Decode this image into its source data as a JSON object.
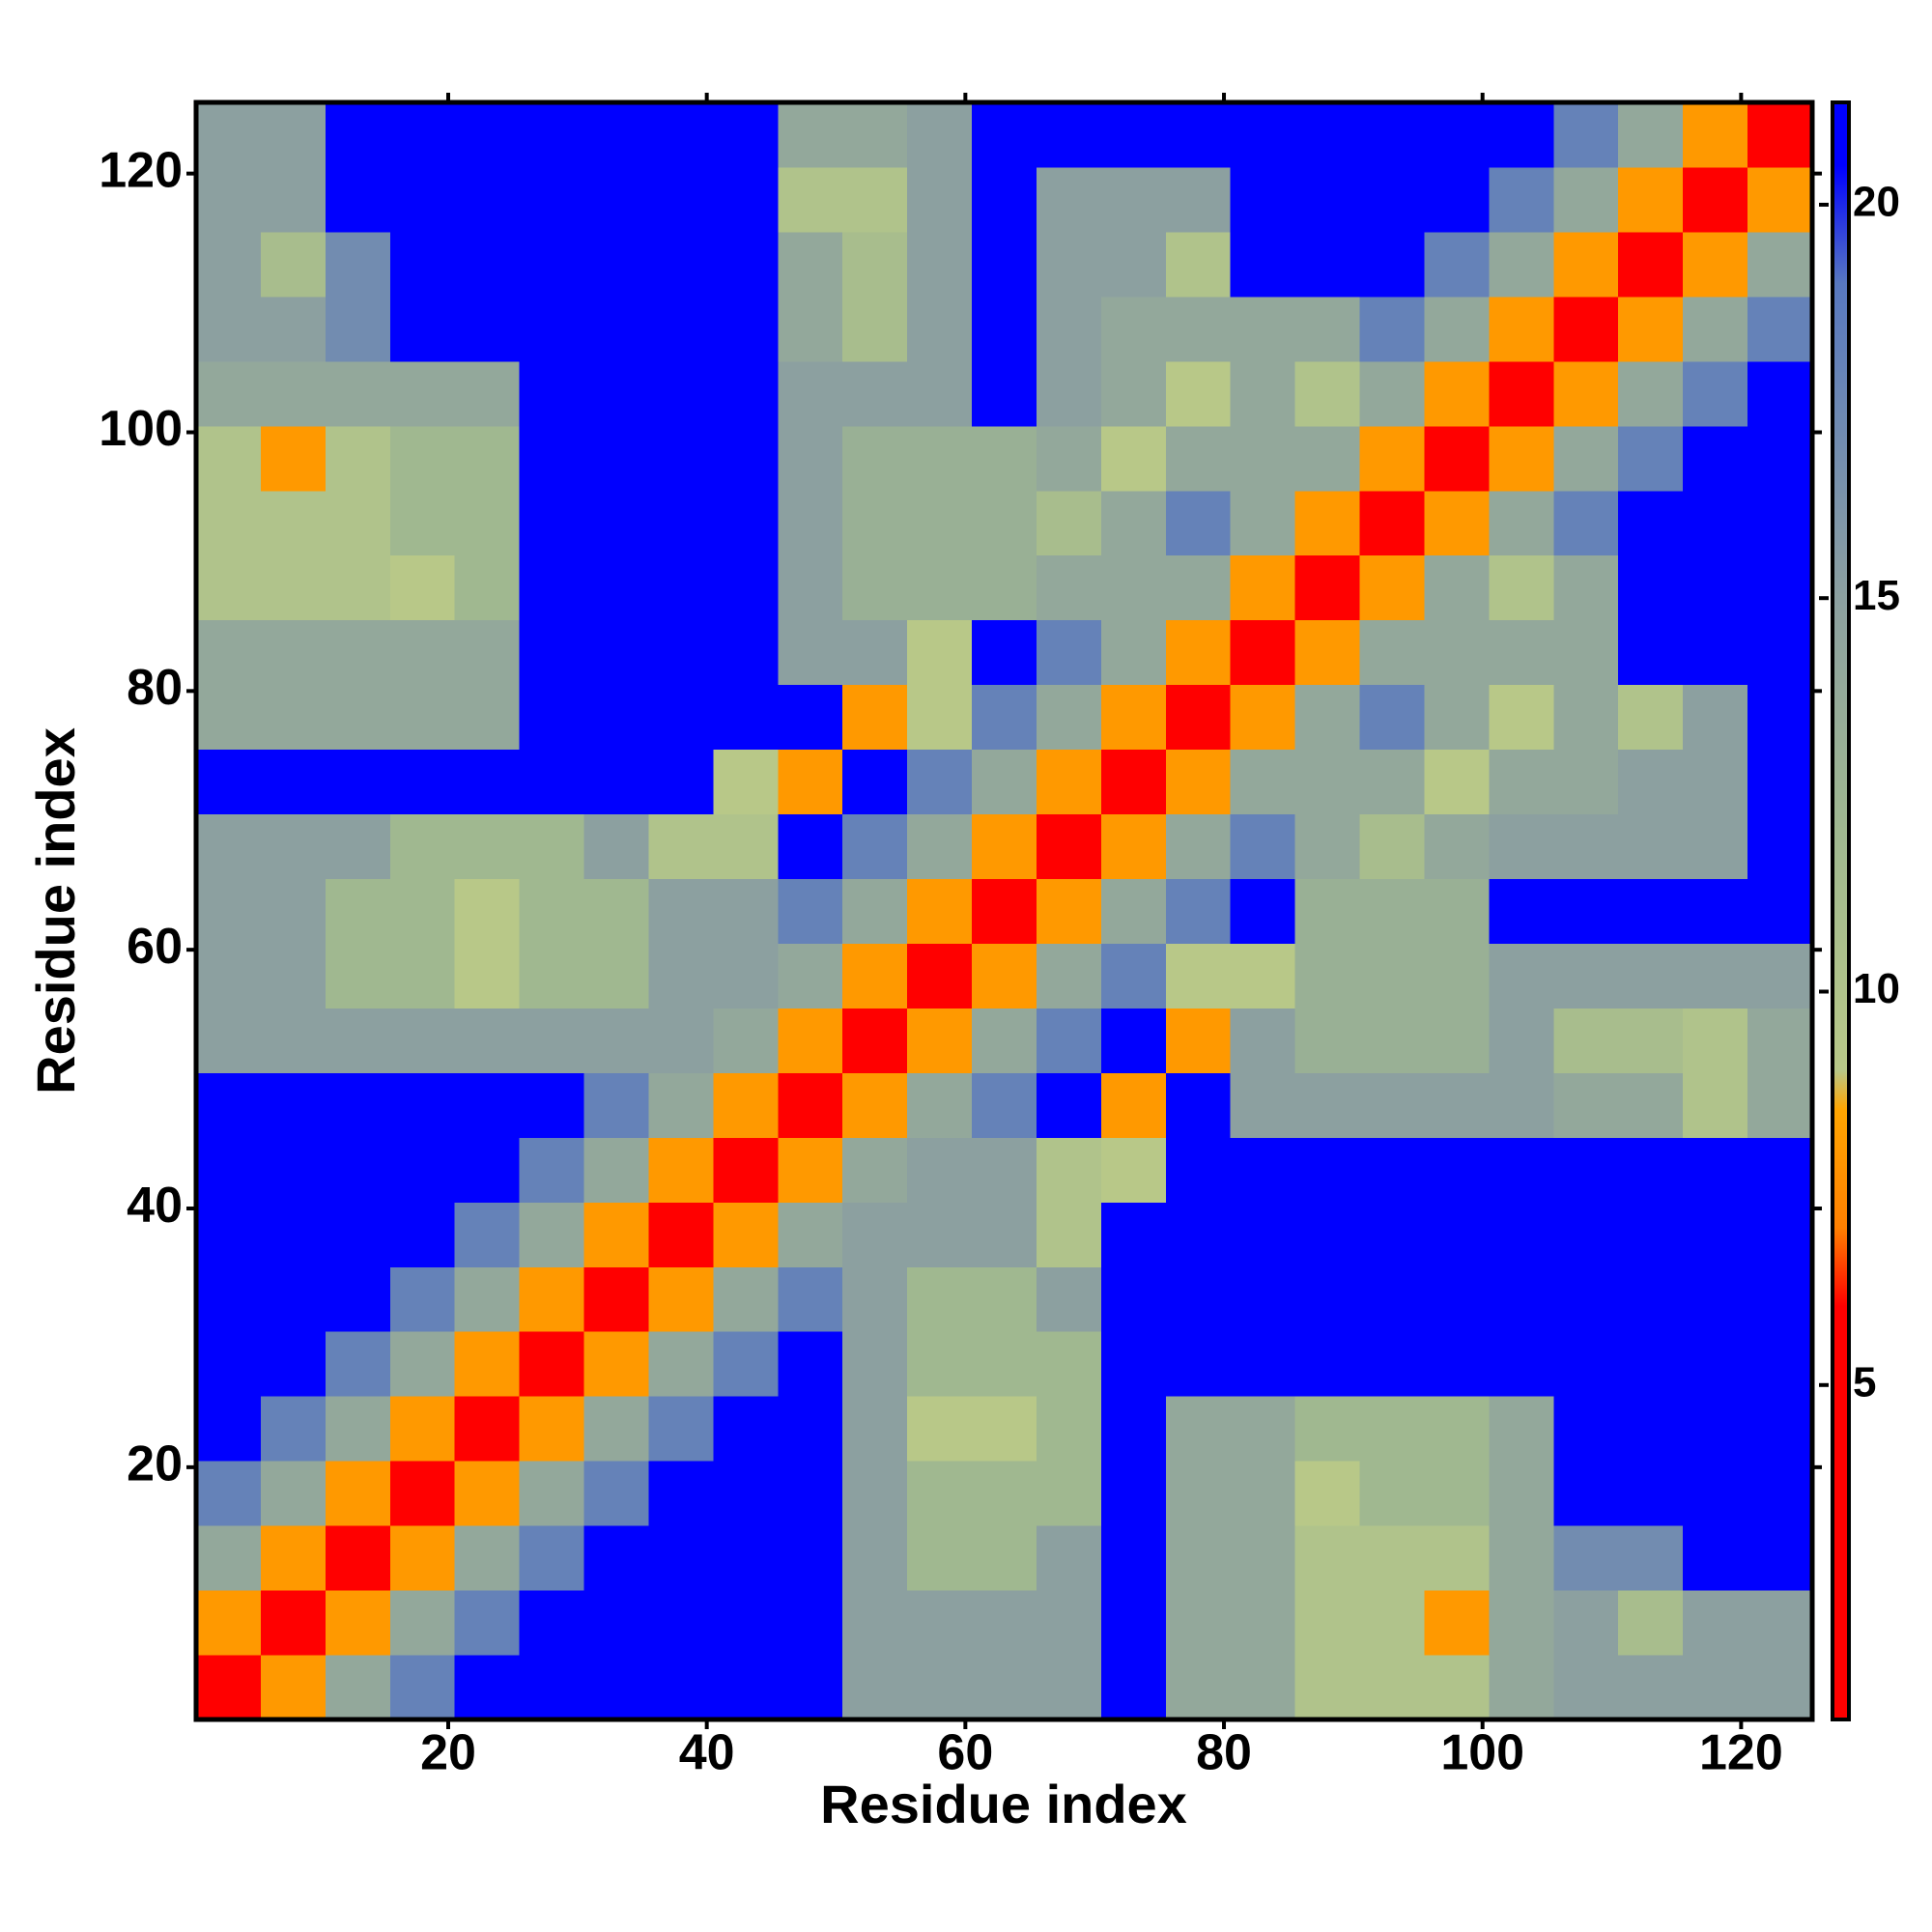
{
  "chart_data": {
    "type": "heatmap",
    "xlabel": "Residue index",
    "ylabel": "Residue index",
    "x": [
      3,
      8,
      13,
      18,
      23,
      28,
      33,
      38,
      43,
      48,
      53,
      58,
      63,
      68,
      73,
      78,
      83,
      88,
      93,
      98,
      103,
      108,
      113,
      118,
      123
    ],
    "y": [
      3,
      8,
      13,
      18,
      23,
      28,
      33,
      38,
      43,
      48,
      53,
      58,
      63,
      68,
      73,
      78,
      83,
      88,
      93,
      98,
      103,
      108,
      113,
      118,
      123
    ],
    "xlim": [
      0.5,
      125.5
    ],
    "ylim": [
      0.5,
      125.5
    ],
    "xticks": [
      20,
      40,
      60,
      80,
      100,
      120
    ],
    "yticks": [
      20,
      40,
      60,
      80,
      100,
      120
    ],
    "zlim": [
      0.75,
      21.3
    ],
    "zticks": [
      5,
      10,
      15,
      20
    ],
    "colorscale": [
      [
        0.75,
        "#ff0000"
      ],
      [
        6,
        "#ff0000"
      ],
      [
        7,
        "#ff8000"
      ],
      [
        8.5,
        "#ffa500"
      ],
      [
        9,
        "#b8c888"
      ],
      [
        12,
        "#a0b890"
      ],
      [
        15,
        "#8ca0a0"
      ],
      [
        19,
        "#5878c0"
      ],
      [
        20.5,
        "#0000ff"
      ],
      [
        21.3,
        "#0000ff"
      ]
    ],
    "z": [
      [
        3,
        8,
        14,
        18,
        21,
        21,
        21,
        21,
        21,
        21,
        15,
        15,
        15,
        15,
        21,
        14,
        14,
        10,
        10,
        10,
        14,
        15,
        15,
        15,
        15
      ],
      [
        8,
        3,
        8,
        14,
        18,
        21,
        21,
        21,
        21,
        21,
        15,
        15,
        15,
        15,
        21,
        14,
        14,
        10,
        10,
        8,
        14,
        15,
        11,
        15,
        15
      ],
      [
        14,
        8,
        3,
        8,
        14,
        18,
        21,
        21,
        21,
        21,
        15,
        12,
        12,
        15,
        21,
        14,
        14,
        10,
        10,
        10,
        14,
        17,
        17,
        21,
        21
      ],
      [
        18,
        14,
        8,
        3,
        8,
        14,
        18,
        21,
        21,
        21,
        15,
        12,
        12,
        12,
        21,
        14,
        14,
        9,
        12,
        12,
        14,
        21,
        21,
        21,
        21
      ],
      [
        21,
        18,
        14,
        8,
        3,
        8,
        14,
        18,
        21,
        21,
        15,
        9,
        9,
        12,
        21,
        14,
        14,
        12,
        12,
        12,
        14,
        21,
        21,
        21,
        21
      ],
      [
        21,
        21,
        18,
        14,
        8,
        3,
        8,
        14,
        18,
        21,
        15,
        12,
        12,
        12,
        21,
        21,
        21,
        21,
        21,
        21,
        21,
        21,
        21,
        21,
        21
      ],
      [
        21,
        21,
        21,
        18,
        14,
        8,
        3,
        8,
        14,
        18,
        15,
        12,
        12,
        15,
        21,
        21,
        21,
        21,
        21,
        21,
        21,
        21,
        21,
        21,
        21
      ],
      [
        21,
        21,
        21,
        21,
        18,
        14,
        8,
        3,
        8,
        14,
        15,
        15,
        15,
        10,
        21,
        21,
        21,
        21,
        21,
        21,
        21,
        21,
        21,
        21,
        21
      ],
      [
        21,
        21,
        21,
        21,
        21,
        18,
        14,
        8,
        3,
        8,
        14,
        15,
        15,
        10,
        9,
        21,
        21,
        21,
        21,
        21,
        21,
        21,
        21,
        21,
        21
      ],
      [
        21,
        21,
        21,
        21,
        21,
        21,
        18,
        14,
        8,
        3,
        8,
        14,
        18,
        21,
        8,
        21,
        15,
        15,
        15,
        15,
        15,
        14,
        14,
        10,
        14
      ],
      [
        15,
        15,
        15,
        15,
        15,
        15,
        15,
        15,
        14,
        8,
        3,
        8,
        14,
        18,
        21,
        8,
        15,
        13,
        13,
        13,
        15,
        11,
        11,
        10,
        14
      ],
      [
        15,
        15,
        12,
        12,
        9,
        12,
        12,
        15,
        15,
        14,
        8,
        3,
        8,
        14,
        18,
        9,
        9,
        13,
        13,
        13,
        15,
        15,
        15,
        15,
        15
      ],
      [
        15,
        15,
        12,
        12,
        9,
        12,
        12,
        15,
        15,
        18,
        14,
        8,
        3,
        8,
        14,
        18,
        21,
        13,
        13,
        13,
        21,
        21,
        21,
        21,
        21
      ],
      [
        15,
        15,
        15,
        12,
        12,
        12,
        15,
        10,
        10,
        21,
        18,
        14,
        8,
        3,
        8,
        14,
        18,
        14,
        11,
        14,
        15,
        15,
        15,
        15,
        21
      ],
      [
        21,
        21,
        21,
        21,
        21,
        21,
        21,
        21,
        9,
        8,
        21,
        18,
        14,
        8,
        3,
        8,
        14,
        14,
        14,
        9,
        14,
        14,
        15,
        15,
        21
      ],
      [
        14,
        14,
        14,
        14,
        14,
        21,
        21,
        21,
        21,
        21,
        8,
        9,
        18,
        14,
        8,
        3,
        8,
        14,
        18,
        14,
        9,
        14,
        10,
        15,
        21
      ],
      [
        14,
        14,
        14,
        14,
        14,
        21,
        21,
        21,
        21,
        15,
        15,
        9,
        21,
        18,
        14,
        8,
        3,
        8,
        14,
        14,
        14,
        14,
        21,
        21,
        21
      ],
      [
        10,
        10,
        10,
        9,
        12,
        21,
        21,
        21,
        21,
        15,
        13,
        13,
        13,
        14,
        14,
        14,
        8,
        3,
        8,
        14,
        10,
        14,
        21,
        21,
        21
      ],
      [
        10,
        10,
        10,
        12,
        12,
        21,
        21,
        21,
        21,
        15,
        13,
        13,
        13,
        11,
        14,
        18,
        14,
        8,
        3,
        8,
        14,
        18,
        21,
        21,
        21
      ],
      [
        10,
        8,
        10,
        12,
        12,
        21,
        21,
        21,
        21,
        15,
        13,
        13,
        13,
        14,
        9,
        14,
        14,
        14,
        8,
        3,
        8,
        14,
        18,
        21,
        21
      ],
      [
        14,
        14,
        14,
        14,
        14,
        21,
        21,
        21,
        21,
        15,
        15,
        15,
        21,
        15,
        14,
        9,
        14,
        10,
        14,
        8,
        3,
        8,
        14,
        18,
        21
      ],
      [
        15,
        15,
        17,
        21,
        21,
        21,
        21,
        21,
        21,
        14,
        11,
        15,
        21,
        15,
        14,
        14,
        14,
        14,
        18,
        14,
        8,
        3,
        8,
        14,
        18
      ],
      [
        15,
        11,
        17,
        21,
        21,
        21,
        21,
        21,
        21,
        14,
        11,
        15,
        21,
        15,
        15,
        10,
        21,
        21,
        21,
        18,
        14,
        8,
        3,
        8,
        14
      ],
      [
        15,
        15,
        21,
        21,
        21,
        21,
        21,
        21,
        21,
        10,
        10,
        15,
        21,
        15,
        15,
        15,
        21,
        21,
        21,
        21,
        18,
        14,
        8,
        3,
        8
      ],
      [
        15,
        15,
        21,
        21,
        21,
        21,
        21,
        21,
        21,
        14,
        14,
        15,
        21,
        21,
        21,
        21,
        21,
        21,
        21,
        21,
        21,
        18,
        14,
        8,
        3
      ]
    ]
  }
}
